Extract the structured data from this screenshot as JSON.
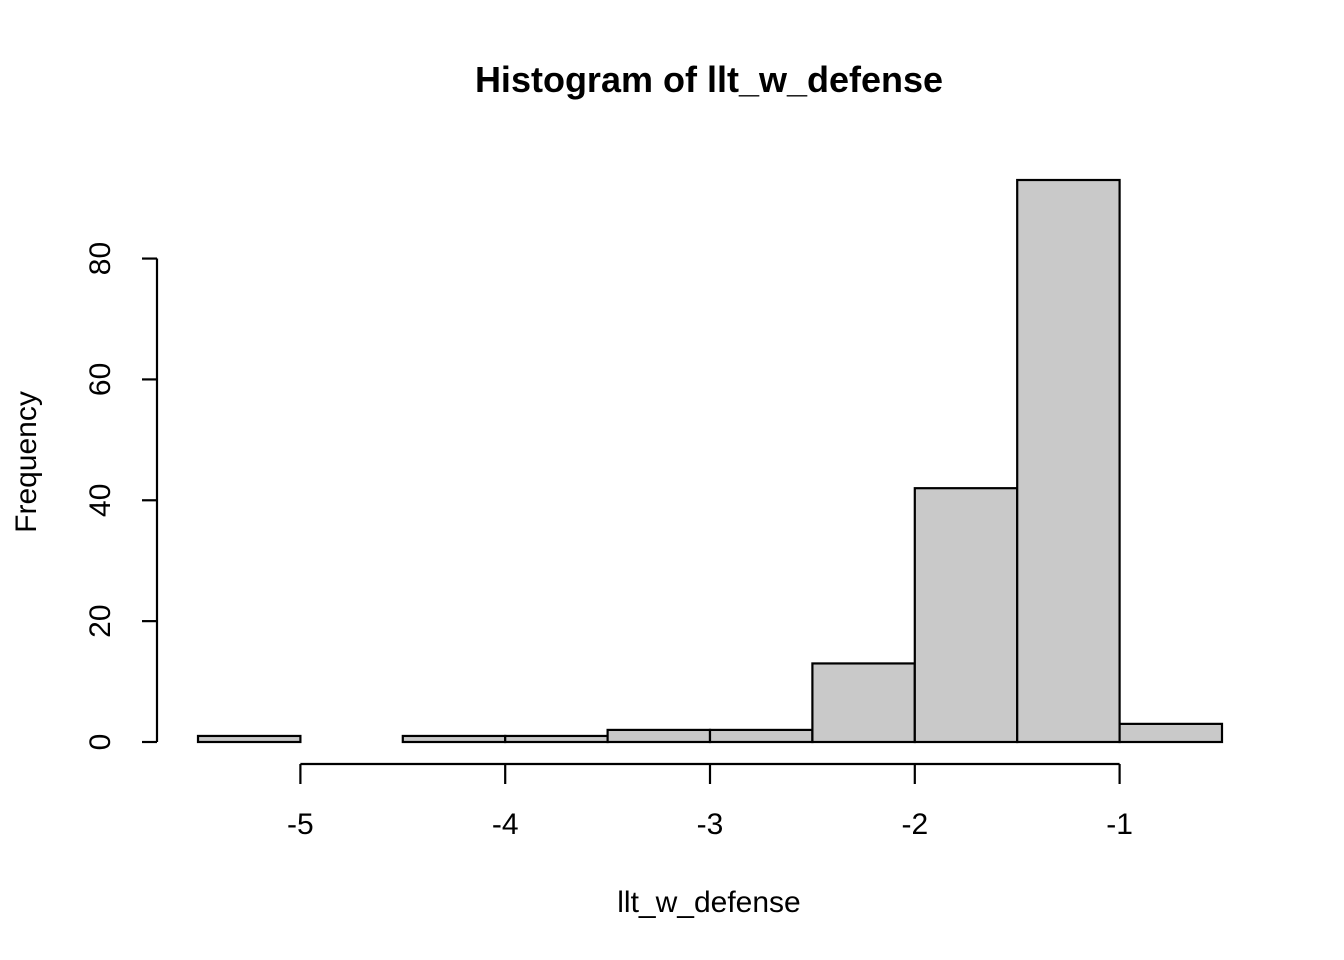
{
  "chart_data": {
    "type": "bar",
    "title": "Histogram of llt_w_defense",
    "xlabel": "llt_w_defense",
    "ylabel": "Frequency",
    "bins": [
      {
        "x0": -5.5,
        "x1": -5.0,
        "count": 1
      },
      {
        "x0": -5.0,
        "x1": -4.5,
        "count": 0
      },
      {
        "x0": -4.5,
        "x1": -4.0,
        "count": 1
      },
      {
        "x0": -4.0,
        "x1": -3.5,
        "count": 1
      },
      {
        "x0": -3.5,
        "x1": -3.0,
        "count": 2
      },
      {
        "x0": -3.0,
        "x1": -2.5,
        "count": 2
      },
      {
        "x0": -2.5,
        "x1": -2.0,
        "count": 13
      },
      {
        "x0": -2.0,
        "x1": -1.5,
        "count": 42
      },
      {
        "x0": -1.5,
        "x1": -1.0,
        "count": 93
      },
      {
        "x0": -1.0,
        "x1": -0.5,
        "count": 3
      }
    ],
    "x_ticks": [
      -5,
      -4,
      -3,
      -2,
      -1
    ],
    "x_tick_labels": [
      "-5",
      "-4",
      "-3",
      "-2",
      "-1"
    ],
    "y_ticks": [
      0,
      20,
      40,
      60,
      80
    ],
    "y_tick_labels": [
      "0",
      "20",
      "40",
      "60",
      "80"
    ],
    "xlim": [
      -5.5,
      -0.5
    ],
    "ylim": [
      0,
      93
    ],
    "grid": false,
    "bar_color": "#c9c9c9",
    "edge_color": "#000000"
  }
}
